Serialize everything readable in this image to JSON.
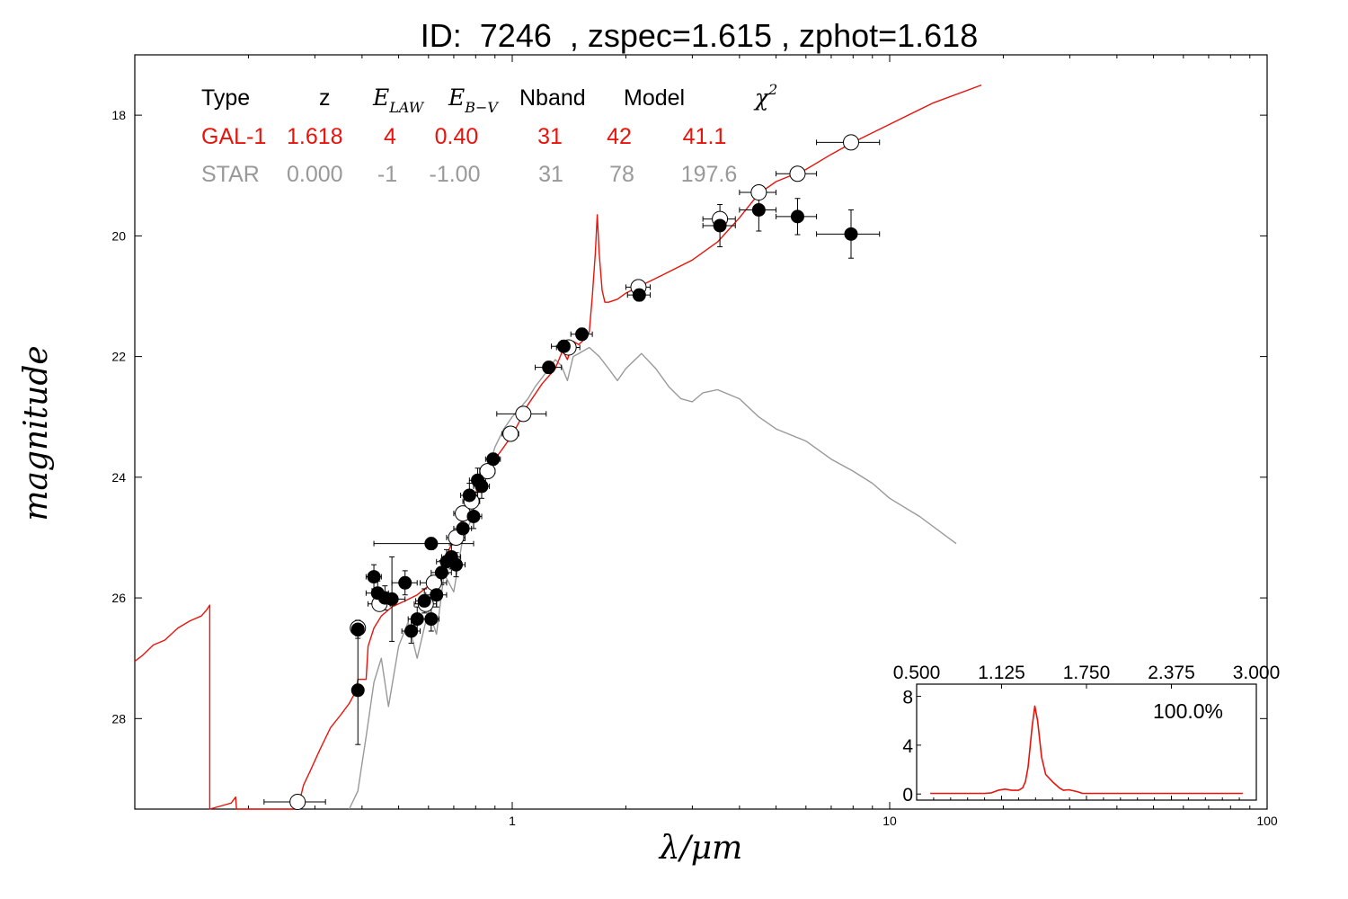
{
  "chart_data": [
    {
      "type": "line",
      "title": "ID:  7246  , zspec=1.615 , zphot=1.618",
      "xlabel": "λ/μm",
      "ylabel": "magnitude",
      "x_scale": "log",
      "xlim": [
        0.1,
        100
      ],
      "ylim": [
        29.5,
        17
      ],
      "y_inverted": true,
      "x_ticks": [
        "1",
        "10",
        "100"
      ],
      "y_ticks": [
        "18",
        "20",
        "22",
        "24",
        "26",
        "28"
      ],
      "table": {
        "headers": [
          "Type",
          "z",
          "E_LAW",
          "E_B−V",
          "Nband",
          "Model",
          "χ2"
        ],
        "rows": [
          {
            "type": "GAL-1",
            "z": "1.618",
            "elaw": "4",
            "ebv": "0.40",
            "nband": "31",
            "model": "42",
            "chi2": "41.1",
            "color": "#e8140c"
          },
          {
            "type": "STAR",
            "z": "0.000",
            "elaw": "-1",
            "ebv": "-1.00",
            "nband": "31",
            "model": "78",
            "chi2": "197.6",
            "color": "#999999"
          }
        ]
      },
      "series": [
        {
          "color": "#e8140c",
          "points": [
            [
              0.1,
              27.05
            ],
            [
              0.105,
              26.95
            ],
            [
              0.112,
              26.78
            ],
            [
              0.12,
              26.7
            ],
            [
              0.13,
              26.5
            ],
            [
              0.14,
              26.38
            ],
            [
              0.15,
              26.3
            ],
            [
              0.155,
              26.2
            ],
            [
              0.158,
              26.12
            ],
            [
              0.158,
              29.5
            ],
            [
              0.18,
              29.4
            ],
            [
              0.185,
              29.3
            ],
            [
              0.186,
              29.5
            ],
            [
              0.27,
              29.5
            ],
            [
              0.28,
              29.1
            ],
            [
              0.29,
              28.9
            ],
            [
              0.31,
              28.5
            ],
            [
              0.33,
              28.15
            ],
            [
              0.35,
              27.95
            ],
            [
              0.37,
              27.75
            ],
            [
              0.385,
              27.55
            ],
            [
              0.39,
              27.35
            ],
            [
              0.41,
              27.35
            ],
            [
              0.415,
              26.8
            ],
            [
              0.43,
              26.5
            ],
            [
              0.45,
              26.3
            ],
            [
              0.48,
              26.15
            ],
            [
              0.52,
              26.05
            ],
            [
              0.56,
              25.95
            ],
            [
              0.6,
              25.8
            ],
            [
              0.64,
              25.6
            ],
            [
              0.68,
              25.2
            ],
            [
              0.72,
              24.85
            ],
            [
              0.76,
              24.5
            ],
            [
              0.8,
              24.25
            ],
            [
              0.85,
              23.95
            ],
            [
              0.9,
              23.7
            ],
            [
              0.95,
              23.5
            ],
            [
              1.0,
              23.3
            ],
            [
              1.05,
              23.05
            ],
            [
              1.1,
              22.8
            ],
            [
              1.2,
              22.45
            ],
            [
              1.3,
              22.2
            ],
            [
              1.36,
              21.9
            ],
            [
              1.4,
              22.05
            ],
            [
              1.45,
              21.75
            ],
            [
              1.5,
              21.8
            ],
            [
              1.55,
              21.72
            ],
            [
              1.6,
              21.6
            ],
            [
              1.63,
              21.0
            ],
            [
              1.66,
              20.3
            ],
            [
              1.68,
              19.65
            ],
            [
              1.7,
              20.3
            ],
            [
              1.73,
              20.9
            ],
            [
              1.76,
              21.1
            ],
            [
              1.8,
              21.1
            ],
            [
              1.9,
              21.05
            ],
            [
              2.0,
              20.95
            ],
            [
              2.2,
              20.82
            ],
            [
              2.5,
              20.65
            ],
            [
              3.0,
              20.4
            ],
            [
              3.5,
              20.1
            ],
            [
              4.0,
              19.7
            ],
            [
              4.5,
              19.3
            ],
            [
              5.0,
              19.1
            ],
            [
              6.0,
              18.9
            ],
            [
              7.0,
              18.65
            ],
            [
              8.0,
              18.45
            ],
            [
              10.0,
              18.15
            ],
            [
              13.0,
              17.8
            ],
            [
              17.5,
              17.5
            ]
          ]
        },
        {
          "color": "#999999",
          "points": [
            [
              0.37,
              29.5
            ],
            [
              0.39,
              29.2
            ],
            [
              0.41,
              28.3
            ],
            [
              0.43,
              27.4
            ],
            [
              0.45,
              27.0
            ],
            [
              0.47,
              27.8
            ],
            [
              0.5,
              26.8
            ],
            [
              0.53,
              26.4
            ],
            [
              0.56,
              27.0
            ],
            [
              0.6,
              26.2
            ],
            [
              0.63,
              26.6
            ],
            [
              0.66,
              25.6
            ],
            [
              0.7,
              25.9
            ],
            [
              0.74,
              25.0
            ],
            [
              0.78,
              24.7
            ],
            [
              0.82,
              24.0
            ],
            [
              0.86,
              23.9
            ],
            [
              0.9,
              23.5
            ],
            [
              0.95,
              23.2
            ],
            [
              1.0,
              23.0
            ],
            [
              1.05,
              22.85
            ],
            [
              1.1,
              22.7
            ],
            [
              1.15,
              22.5
            ],
            [
              1.2,
              22.35
            ],
            [
              1.25,
              22.2
            ],
            [
              1.3,
              22.05
            ],
            [
              1.35,
              22.15
            ],
            [
              1.4,
              22.4
            ],
            [
              1.45,
              22.0
            ],
            [
              1.5,
              21.95
            ],
            [
              1.6,
              21.85
            ],
            [
              1.7,
              22.0
            ],
            [
              1.8,
              22.2
            ],
            [
              1.9,
              22.4
            ],
            [
              2.0,
              22.2
            ],
            [
              2.2,
              21.95
            ],
            [
              2.4,
              22.2
            ],
            [
              2.6,
              22.5
            ],
            [
              2.8,
              22.7
            ],
            [
              3.0,
              22.75
            ],
            [
              3.2,
              22.6
            ],
            [
              3.5,
              22.55
            ],
            [
              4.0,
              22.7
            ],
            [
              4.5,
              23.0
            ],
            [
              5.0,
              23.2
            ],
            [
              6.0,
              23.4
            ],
            [
              7.0,
              23.7
            ],
            [
              8.0,
              23.9
            ],
            [
              9.0,
              24.1
            ],
            [
              10.0,
              24.35
            ],
            [
              12.0,
              24.65
            ],
            [
              15.0,
              25.1
            ]
          ]
        }
      ],
      "observed_open": [
        {
          "x": 0.27,
          "y": 29.38,
          "xerr": 0.05,
          "yerr": 0.0
        },
        {
          "x": 0.39,
          "y": 26.5,
          "xerr": 0.0,
          "yerr": 0.0
        },
        {
          "x": 0.445,
          "y": 26.1,
          "xerr": 0.03,
          "yerr": 0.05
        },
        {
          "x": 0.59,
          "y": 26.1,
          "xerr": 0.04,
          "yerr": 0.05
        },
        {
          "x": 0.62,
          "y": 25.75,
          "xerr": 0.05,
          "yerr": 0.05
        },
        {
          "x": 0.71,
          "y": 25.0,
          "xerr": 0.04,
          "yerr": 0.05
        },
        {
          "x": 0.74,
          "y": 24.6,
          "xerr": 0.04,
          "yerr": 0.05
        },
        {
          "x": 0.78,
          "y": 24.4,
          "xerr": 0.04,
          "yerr": 0.05
        },
        {
          "x": 0.86,
          "y": 23.9,
          "xerr": 0.04,
          "yerr": 0.05
        },
        {
          "x": 0.99,
          "y": 23.28,
          "xerr": 0.05,
          "yerr": 0.05
        },
        {
          "x": 1.07,
          "y": 22.95,
          "xerr": 0.16,
          "yerr": 0.05
        },
        {
          "x": 1.41,
          "y": 21.85,
          "xerr": 0.1,
          "yerr": 0.05
        },
        {
          "x": 2.16,
          "y": 20.85,
          "xerr": 0.16,
          "yerr": 0.05
        },
        {
          "x": 3.55,
          "y": 19.72,
          "xerr": 0.35,
          "yerr": 0.05
        },
        {
          "x": 4.5,
          "y": 19.28,
          "xerr": 0.5,
          "yerr": 0.05
        },
        {
          "x": 5.7,
          "y": 18.97,
          "xerr": 0.7,
          "yerr": 0.05
        },
        {
          "x": 7.9,
          "y": 18.45,
          "xerr": 1.5,
          "yerr": 0.05
        }
      ],
      "observed_filled": [
        {
          "x": 0.39,
          "y": 26.52,
          "xerr": 0.0,
          "yerr": 0.15
        },
        {
          "x": 0.39,
          "y": 27.53,
          "xerr": 0.0,
          "yerr": 0.9
        },
        {
          "x": 0.43,
          "y": 25.65,
          "xerr": 0.02,
          "yerr": 0.2
        },
        {
          "x": 0.44,
          "y": 25.92,
          "xerr": 0.03,
          "yerr": 0.2
        },
        {
          "x": 0.46,
          "y": 26.0,
          "xerr": 0.03,
          "yerr": 0.2
        },
        {
          "x": 0.48,
          "y": 26.02,
          "xerr": 0.04,
          "yerr": 0.7
        },
        {
          "x": 0.52,
          "y": 25.75,
          "xerr": 0.04,
          "yerr": 0.2
        },
        {
          "x": 0.54,
          "y": 26.55,
          "xerr": 0.03,
          "yerr": 0.2
        },
        {
          "x": 0.56,
          "y": 26.35,
          "xerr": 0.03,
          "yerr": 0.2
        },
        {
          "x": 0.585,
          "y": 26.05,
          "xerr": 0.03,
          "yerr": 0.2
        },
        {
          "x": 0.61,
          "y": 25.1,
          "xerr": 0.18,
          "yerr": 0.1
        },
        {
          "x": 0.61,
          "y": 26.35,
          "xerr": 0.03,
          "yerr": 0.2
        },
        {
          "x": 0.63,
          "y": 25.95,
          "xerr": 0.04,
          "yerr": 0.2
        },
        {
          "x": 0.65,
          "y": 25.58,
          "xerr": 0.04,
          "yerr": 0.2
        },
        {
          "x": 0.67,
          "y": 25.4,
          "xerr": 0.04,
          "yerr": 0.2
        },
        {
          "x": 0.69,
          "y": 25.32,
          "xerr": 0.04,
          "yerr": 0.2
        },
        {
          "x": 0.71,
          "y": 25.45,
          "xerr": 0.04,
          "yerr": 0.2
        },
        {
          "x": 0.74,
          "y": 24.85,
          "xerr": 0.04,
          "yerr": 0.2
        },
        {
          "x": 0.77,
          "y": 24.3,
          "xerr": 0.04,
          "yerr": 0.2
        },
        {
          "x": 0.79,
          "y": 24.65,
          "xerr": 0.04,
          "yerr": 0.2
        },
        {
          "x": 0.81,
          "y": 24.05,
          "xerr": 0.04,
          "yerr": 0.2
        },
        {
          "x": 0.83,
          "y": 24.15,
          "xerr": 0.04,
          "yerr": 0.2
        },
        {
          "x": 0.89,
          "y": 23.7,
          "xerr": 0.04,
          "yerr": 0.1
        },
        {
          "x": 1.25,
          "y": 22.18,
          "xerr": 0.1,
          "yerr": 0.1
        },
        {
          "x": 1.37,
          "y": 21.83,
          "xerr": 0.1,
          "yerr": 0.1
        },
        {
          "x": 1.53,
          "y": 21.63,
          "xerr": 0.1,
          "yerr": 0.1
        },
        {
          "x": 2.17,
          "y": 20.98,
          "xerr": 0.15,
          "yerr": 0.1
        },
        {
          "x": 3.55,
          "y": 19.83,
          "xerr": 0.35,
          "yerr": 0.35
        },
        {
          "x": 4.5,
          "y": 19.57,
          "xerr": 0.5,
          "yerr": 0.35
        },
        {
          "x": 5.7,
          "y": 19.68,
          "xerr": 0.7,
          "yerr": 0.3
        },
        {
          "x": 7.9,
          "y": 19.97,
          "xerr": 1.5,
          "yerr": 0.4
        }
      ]
    },
    {
      "type": "line",
      "title": "",
      "xlim": [
        0.5,
        3.0
      ],
      "ylim": [
        -0.5,
        9
      ],
      "x_ticks": [
        "0.500",
        "1.125",
        "1.750",
        "2.375",
        "3.000"
      ],
      "y_ticks": [
        "0",
        "4",
        "8"
      ],
      "annotation": "100.0%",
      "series": [
        {
          "color": "#e8140c",
          "points": [
            [
              0.6,
              0.05
            ],
            [
              1.0,
              0.05
            ],
            [
              1.05,
              0.1
            ],
            [
              1.1,
              0.3
            ],
            [
              1.15,
              0.4
            ],
            [
              1.2,
              0.3
            ],
            [
              1.25,
              0.3
            ],
            [
              1.28,
              0.5
            ],
            [
              1.3,
              1.0
            ],
            [
              1.32,
              2.2
            ],
            [
              1.35,
              5.5
            ],
            [
              1.37,
              7.2
            ],
            [
              1.39,
              6.0
            ],
            [
              1.42,
              3.0
            ],
            [
              1.45,
              1.6
            ],
            [
              1.5,
              1.0
            ],
            [
              1.55,
              0.5
            ],
            [
              1.58,
              0.3
            ],
            [
              1.62,
              0.35
            ],
            [
              1.68,
              0.2
            ],
            [
              1.72,
              0.05
            ],
            [
              2.1,
              0.05
            ],
            [
              2.9,
              0.05
            ]
          ]
        }
      ]
    }
  ]
}
